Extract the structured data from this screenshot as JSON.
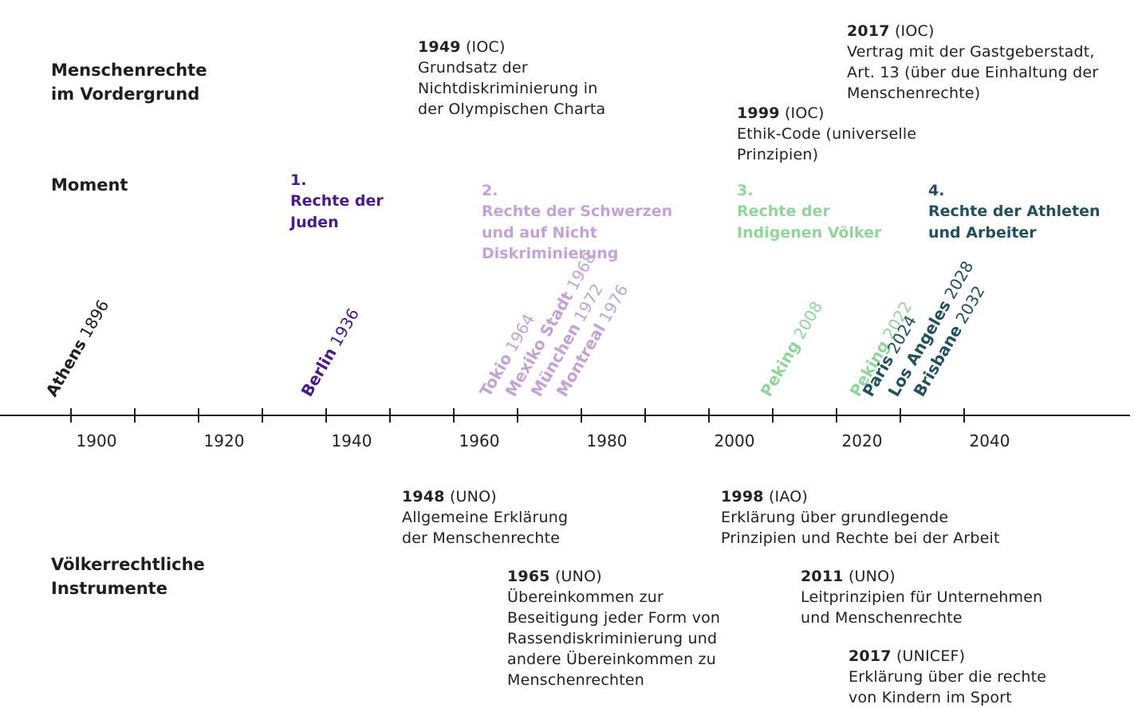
{
  "row_labels": {
    "human_rights": "Menschenrechte\nim Vordergrund",
    "moment": "Moment",
    "instruments": "Völkerrechtliche\nInstrumente"
  },
  "colors": {
    "black": "#1e1e1e",
    "purple_dark": "#4b1a87",
    "purple_light": "#c3a3d6",
    "green": "#93d49c",
    "teal": "#23505d"
  },
  "axis": {
    "min": 1876,
    "max": 2062,
    "tick_labels": [
      1900,
      1920,
      1940,
      1960,
      1980,
      2000,
      2020,
      2040
    ],
    "tick_years": [
      1896,
      1906,
      1916,
      1926,
      1936,
      1946,
      1956,
      1966,
      1976,
      1986,
      1996,
      2006,
      2016,
      2026,
      2036
    ]
  },
  "moments": [
    {
      "num": "1.",
      "title": "Rechte der\nJuden",
      "color": "#4b1a87"
    },
    {
      "num": "2.",
      "title": "Rechte der Schwerzen\nund auf Nicht\nDiskriminierung",
      "color": "#c3a3d6"
    },
    {
      "num": "3.",
      "title": "Rechte der\nIndigenen Völker",
      "color": "#93d49c"
    },
    {
      "num": "4.",
      "title": "Rechte der Athleten\nund Arbeiter",
      "color": "#23505d"
    }
  ],
  "games": [
    {
      "city": "Athens",
      "year": "1896",
      "value": 1896,
      "color": "#1e1e1e"
    },
    {
      "city": "Berlin",
      "year": "1936",
      "value": 1936,
      "color": "#4b1a87"
    },
    {
      "city": "Tokio",
      "year": "1964",
      "value": 1964,
      "color": "#c3a3d6"
    },
    {
      "city": "Mexiko Stadt",
      "year": "1968",
      "value": 1968,
      "color": "#c3a3d6"
    },
    {
      "city": "München",
      "year": "1972",
      "value": 1972,
      "color": "#c3a3d6"
    },
    {
      "city": "Montreal",
      "year": "1976",
      "value": 1976,
      "color": "#c3a3d6"
    },
    {
      "city": "Peking",
      "year": "2008",
      "value": 2008,
      "color": "#93d49c"
    },
    {
      "city": "Peking",
      "year": "2022",
      "value": 2022,
      "color": "#93d49c"
    },
    {
      "city": "Paris",
      "year": "2024",
      "value": 2024,
      "color": "#23505d"
    },
    {
      "city": "Los Angeles",
      "year": "2028",
      "value": 2028,
      "color": "#23505d"
    },
    {
      "city": "Brisbane",
      "year": "2032",
      "value": 2032,
      "color": "#23505d"
    }
  ],
  "top_events": [
    {
      "year": "1949",
      "org": "(IOC)",
      "text": "Grundsatz der\nNichtdiskriminierung in\nder Olympischen Charta"
    },
    {
      "year": "2017",
      "org": "(IOC)",
      "text": "Vertrag mit der Gastgeberstadt,\nArt. 13 (über due Einhaltung der\nMenschenrechte)"
    },
    {
      "year": "1999",
      "org": "(IOC)",
      "text": "Ethik-Code (universelle\nPrinzipien)"
    }
  ],
  "bottom_events": [
    {
      "year": "1948",
      "org": "(UNO)",
      "text": "Allgemeine Erklärung\nder Menschenrechte"
    },
    {
      "year": "1998",
      "org": "(IAO)",
      "text": "Erklärung über grundlegende\nPrinzipien und Rechte bei der Arbeit"
    },
    {
      "year": "1965",
      "org": "(UNO)",
      "text": "Übereinkommen zur\nBeseitigung jeder Form von\nRassendiskriminierung und\nandere Übereinkommen zu\nMenschenrechten"
    },
    {
      "year": "2011",
      "org": "(UNO)",
      "text": "Leitprinzipien für Unternehmen\nund Menschenrechte"
    },
    {
      "year": "2017",
      "org": "(UNICEF)",
      "text": "Erklärung über die rechte\nvon Kindern im Sport"
    }
  ]
}
